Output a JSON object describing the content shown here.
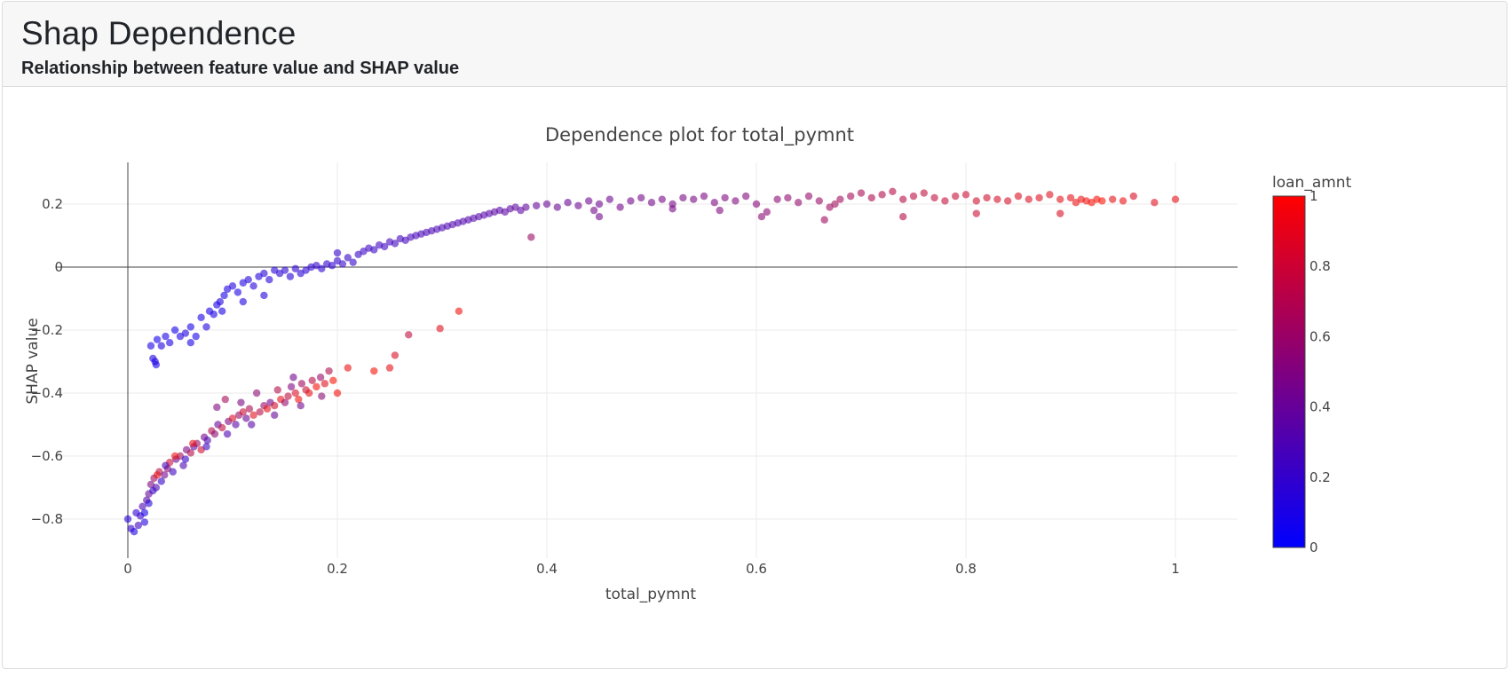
{
  "header": {
    "title": "Shap Dependence",
    "subtitle": "Relationship between feature value and SHAP value"
  },
  "chart_data": {
    "type": "scatter",
    "title": "Dependence plot for total_pymnt",
    "xlabel": "total_pymnt",
    "ylabel": "SHAP value",
    "xlim": [
      -0.07,
      1.06
    ],
    "ylim": [
      -0.91,
      0.335
    ],
    "x_ticks": [
      0,
      0.2,
      0.4,
      0.6,
      0.8,
      1
    ],
    "x_tick_labels": [
      "0",
      "0.2",
      "0.4",
      "0.6",
      "0.8",
      "1"
    ],
    "y_ticks": [
      0.2,
      0,
      -0.2,
      -0.4,
      -0.6,
      -0.8
    ],
    "y_tick_labels": [
      "0.2",
      "0",
      "−0.2",
      "−0.4",
      "−0.6",
      "−0.8"
    ],
    "grid": true,
    "colorbar": {
      "title": "loan_amnt",
      "range": [
        0,
        1
      ],
      "ticks": [
        0,
        0.2,
        0.4,
        0.6,
        0.8,
        1
      ],
      "tick_labels": [
        "0",
        "0.2",
        "0.4",
        "0.6",
        "0.8",
        "1"
      ],
      "color_low": "#0000ff",
      "color_high": "#ff0000"
    },
    "marker_opacity": 0.6,
    "points": [
      {
        "x": 0.0,
        "y": -0.8,
        "c": 0.15
      },
      {
        "x": 0.003,
        "y": -0.83,
        "c": 0.2
      },
      {
        "x": 0.006,
        "y": -0.84,
        "c": 0.12
      },
      {
        "x": 0.008,
        "y": -0.78,
        "c": 0.18
      },
      {
        "x": 0.01,
        "y": -0.82,
        "c": 0.25
      },
      {
        "x": 0.012,
        "y": -0.79,
        "c": 0.2
      },
      {
        "x": 0.014,
        "y": -0.76,
        "c": 0.3
      },
      {
        "x": 0.016,
        "y": -0.81,
        "c": 0.14
      },
      {
        "x": 0.018,
        "y": -0.74,
        "c": 0.35
      },
      {
        "x": 0.02,
        "y": -0.72,
        "c": 0.4
      },
      {
        "x": 0.022,
        "y": -0.69,
        "c": 0.5
      },
      {
        "x": 0.025,
        "y": -0.67,
        "c": 0.62
      },
      {
        "x": 0.027,
        "y": -0.7,
        "c": 0.3
      },
      {
        "x": 0.03,
        "y": -0.65,
        "c": 0.72
      },
      {
        "x": 0.032,
        "y": -0.68,
        "c": 0.2
      },
      {
        "x": 0.035,
        "y": -0.66,
        "c": 0.45
      },
      {
        "x": 0.038,
        "y": -0.64,
        "c": 0.55
      },
      {
        "x": 0.04,
        "y": -0.62,
        "c": 0.8
      },
      {
        "x": 0.043,
        "y": -0.65,
        "c": 0.25
      },
      {
        "x": 0.046,
        "y": -0.61,
        "c": 0.4
      },
      {
        "x": 0.05,
        "y": -0.6,
        "c": 0.65
      },
      {
        "x": 0.053,
        "y": -0.63,
        "c": 0.3
      },
      {
        "x": 0.056,
        "y": -0.58,
        "c": 0.5
      },
      {
        "x": 0.06,
        "y": -0.59,
        "c": 0.7
      },
      {
        "x": 0.063,
        "y": -0.57,
        "c": 0.35
      },
      {
        "x": 0.066,
        "y": -0.56,
        "c": 0.6
      },
      {
        "x": 0.07,
        "y": -0.58,
        "c": 0.82
      },
      {
        "x": 0.073,
        "y": -0.54,
        "c": 0.45
      },
      {
        "x": 0.076,
        "y": -0.55,
        "c": 0.3
      },
      {
        "x": 0.08,
        "y": -0.52,
        "c": 0.7
      },
      {
        "x": 0.083,
        "y": -0.53,
        "c": 0.55
      },
      {
        "x": 0.086,
        "y": -0.5,
        "c": 0.4
      },
      {
        "x": 0.09,
        "y": -0.51,
        "c": 0.75
      },
      {
        "x": 0.093,
        "y": -0.42,
        "c": 0.65
      },
      {
        "x": 0.096,
        "y": -0.49,
        "c": 0.5
      },
      {
        "x": 0.1,
        "y": -0.48,
        "c": 0.85
      },
      {
        "x": 0.103,
        "y": -0.5,
        "c": 0.35
      },
      {
        "x": 0.106,
        "y": -0.47,
        "c": 0.6
      },
      {
        "x": 0.11,
        "y": -0.46,
        "c": 0.78
      },
      {
        "x": 0.113,
        "y": -0.48,
        "c": 0.42
      },
      {
        "x": 0.116,
        "y": -0.45,
        "c": 0.68
      },
      {
        "x": 0.12,
        "y": -0.47,
        "c": 0.88
      },
      {
        "x": 0.123,
        "y": -0.4,
        "c": 0.55
      },
      {
        "x": 0.126,
        "y": -0.46,
        "c": 0.72
      },
      {
        "x": 0.13,
        "y": -0.44,
        "c": 0.6
      },
      {
        "x": 0.133,
        "y": -0.45,
        "c": 0.9
      },
      {
        "x": 0.136,
        "y": -0.43,
        "c": 0.45
      },
      {
        "x": 0.14,
        "y": -0.44,
        "c": 0.82
      },
      {
        "x": 0.143,
        "y": -0.39,
        "c": 0.7
      },
      {
        "x": 0.146,
        "y": -0.42,
        "c": 0.92
      },
      {
        "x": 0.15,
        "y": -0.43,
        "c": 0.58
      },
      {
        "x": 0.153,
        "y": -0.41,
        "c": 0.76
      },
      {
        "x": 0.156,
        "y": -0.38,
        "c": 0.5
      },
      {
        "x": 0.16,
        "y": -0.4,
        "c": 0.86
      },
      {
        "x": 0.163,
        "y": -0.42,
        "c": 0.95
      },
      {
        "x": 0.166,
        "y": -0.37,
        "c": 0.62
      },
      {
        "x": 0.17,
        "y": -0.39,
        "c": 0.8
      },
      {
        "x": 0.173,
        "y": -0.4,
        "c": 0.9
      },
      {
        "x": 0.176,
        "y": -0.36,
        "c": 0.72
      },
      {
        "x": 0.18,
        "y": -0.38,
        "c": 0.96
      },
      {
        "x": 0.184,
        "y": -0.35,
        "c": 0.6
      },
      {
        "x": 0.188,
        "y": -0.37,
        "c": 0.88
      },
      {
        "x": 0.192,
        "y": -0.33,
        "c": 0.7
      },
      {
        "x": 0.196,
        "y": -0.36,
        "c": 0.98
      },
      {
        "x": 0.2,
        "y": -0.4,
        "c": 0.95
      },
      {
        "x": 0.21,
        "y": -0.32,
        "c": 0.92
      },
      {
        "x": 0.235,
        "y": -0.33,
        "c": 0.97
      },
      {
        "x": 0.25,
        "y": -0.32,
        "c": 0.9
      },
      {
        "x": 0.255,
        "y": -0.28,
        "c": 0.85
      },
      {
        "x": 0.268,
        "y": -0.215,
        "c": 0.75
      },
      {
        "x": 0.298,
        "y": -0.195,
        "c": 0.88
      },
      {
        "x": 0.316,
        "y": -0.14,
        "c": 0.95
      },
      {
        "x": 0.085,
        "y": -0.445,
        "c": 0.5
      },
      {
        "x": 0.108,
        "y": -0.43,
        "c": 0.48
      },
      {
        "x": 0.158,
        "y": -0.35,
        "c": 0.45
      },
      {
        "x": 0.028,
        "y": -0.66,
        "c": 0.9
      },
      {
        "x": 0.045,
        "y": -0.6,
        "c": 0.95
      },
      {
        "x": 0.062,
        "y": -0.56,
        "c": 0.92
      },
      {
        "x": 0.016,
        "y": -0.78,
        "c": 0.1
      },
      {
        "x": 0.02,
        "y": -0.75,
        "c": 0.15
      },
      {
        "x": 0.024,
        "y": -0.71,
        "c": 0.22
      },
      {
        "x": 0.036,
        "y": -0.63,
        "c": 0.28
      },
      {
        "x": 0.055,
        "y": -0.61,
        "c": 0.2
      },
      {
        "x": 0.075,
        "y": -0.57,
        "c": 0.25
      },
      {
        "x": 0.095,
        "y": -0.53,
        "c": 0.3
      },
      {
        "x": 0.118,
        "y": -0.5,
        "c": 0.35
      },
      {
        "x": 0.14,
        "y": -0.47,
        "c": 0.4
      },
      {
        "x": 0.165,
        "y": -0.44,
        "c": 0.45
      },
      {
        "x": 0.185,
        "y": -0.41,
        "c": 0.55
      },
      {
        "x": 0.022,
        "y": -0.25,
        "c": 0.1
      },
      {
        "x": 0.024,
        "y": -0.29,
        "c": 0.12
      },
      {
        "x": 0.026,
        "y": -0.3,
        "c": 0.1
      },
      {
        "x": 0.028,
        "y": -0.23,
        "c": 0.08
      },
      {
        "x": 0.032,
        "y": -0.25,
        "c": 0.12
      },
      {
        "x": 0.036,
        "y": -0.22,
        "c": 0.1
      },
      {
        "x": 0.04,
        "y": -0.24,
        "c": 0.1
      },
      {
        "x": 0.045,
        "y": -0.2,
        "c": 0.08
      },
      {
        "x": 0.05,
        "y": -0.22,
        "c": 0.1
      },
      {
        "x": 0.055,
        "y": -0.21,
        "c": 0.12
      },
      {
        "x": 0.06,
        "y": -0.19,
        "c": 0.1
      },
      {
        "x": 0.065,
        "y": -0.22,
        "c": 0.09
      },
      {
        "x": 0.07,
        "y": -0.16,
        "c": 0.1
      },
      {
        "x": 0.075,
        "y": -0.19,
        "c": 0.12
      },
      {
        "x": 0.078,
        "y": -0.14,
        "c": 0.1
      },
      {
        "x": 0.082,
        "y": -0.15,
        "c": 0.11
      },
      {
        "x": 0.085,
        "y": -0.12,
        "c": 0.09
      },
      {
        "x": 0.088,
        "y": -0.11,
        "c": 0.12
      },
      {
        "x": 0.092,
        "y": -0.09,
        "c": 0.1
      },
      {
        "x": 0.095,
        "y": -0.07,
        "c": 0.11
      },
      {
        "x": 0.1,
        "y": -0.06,
        "c": 0.12
      },
      {
        "x": 0.105,
        "y": -0.08,
        "c": 0.1
      },
      {
        "x": 0.11,
        "y": -0.05,
        "c": 0.13
      },
      {
        "x": 0.115,
        "y": -0.04,
        "c": 0.12
      },
      {
        "x": 0.12,
        "y": -0.06,
        "c": 0.14
      },
      {
        "x": 0.125,
        "y": -0.03,
        "c": 0.13
      },
      {
        "x": 0.13,
        "y": -0.02,
        "c": 0.15
      },
      {
        "x": 0.135,
        "y": -0.04,
        "c": 0.14
      },
      {
        "x": 0.14,
        "y": -0.01,
        "c": 0.15
      },
      {
        "x": 0.145,
        "y": -0.02,
        "c": 0.16
      },
      {
        "x": 0.15,
        "y": -0.01,
        "c": 0.17
      },
      {
        "x": 0.155,
        "y": -0.03,
        "c": 0.15
      },
      {
        "x": 0.16,
        "y": -0.005,
        "c": 0.18
      },
      {
        "x": 0.165,
        "y": -0.02,
        "c": 0.16
      },
      {
        "x": 0.17,
        "y": -0.01,
        "c": 0.17
      },
      {
        "x": 0.175,
        "y": 0.0,
        "c": 0.18
      },
      {
        "x": 0.18,
        "y": 0.005,
        "c": 0.19
      },
      {
        "x": 0.185,
        "y": -0.005,
        "c": 0.17
      },
      {
        "x": 0.19,
        "y": 0.01,
        "c": 0.2
      },
      {
        "x": 0.195,
        "y": 0.005,
        "c": 0.18
      },
      {
        "x": 0.2,
        "y": 0.02,
        "c": 0.2
      },
      {
        "x": 0.205,
        "y": 0.01,
        "c": 0.21
      },
      {
        "x": 0.21,
        "y": 0.03,
        "c": 0.22
      },
      {
        "x": 0.215,
        "y": 0.015,
        "c": 0.2
      },
      {
        "x": 0.2,
        "y": 0.045,
        "c": 0.2
      },
      {
        "x": 0.09,
        "y": -0.14,
        "c": 0.1
      },
      {
        "x": 0.11,
        "y": -0.11,
        "c": 0.11
      },
      {
        "x": 0.13,
        "y": -0.09,
        "c": 0.12
      },
      {
        "x": 0.027,
        "y": -0.31,
        "c": 0.1
      },
      {
        "x": 0.06,
        "y": -0.24,
        "c": 0.1
      },
      {
        "x": 0.22,
        "y": 0.04,
        "c": 0.22
      },
      {
        "x": 0.225,
        "y": 0.05,
        "c": 0.23
      },
      {
        "x": 0.23,
        "y": 0.06,
        "c": 0.24
      },
      {
        "x": 0.235,
        "y": 0.055,
        "c": 0.23
      },
      {
        "x": 0.24,
        "y": 0.07,
        "c": 0.25
      },
      {
        "x": 0.245,
        "y": 0.065,
        "c": 0.24
      },
      {
        "x": 0.25,
        "y": 0.08,
        "c": 0.26
      },
      {
        "x": 0.255,
        "y": 0.075,
        "c": 0.25
      },
      {
        "x": 0.26,
        "y": 0.09,
        "c": 0.27
      },
      {
        "x": 0.265,
        "y": 0.085,
        "c": 0.26
      },
      {
        "x": 0.27,
        "y": 0.095,
        "c": 0.28
      },
      {
        "x": 0.275,
        "y": 0.1,
        "c": 0.27
      },
      {
        "x": 0.28,
        "y": 0.105,
        "c": 0.29
      },
      {
        "x": 0.285,
        "y": 0.11,
        "c": 0.28
      },
      {
        "x": 0.29,
        "y": 0.115,
        "c": 0.3
      },
      {
        "x": 0.295,
        "y": 0.12,
        "c": 0.29
      },
      {
        "x": 0.3,
        "y": 0.125,
        "c": 0.31
      },
      {
        "x": 0.305,
        "y": 0.13,
        "c": 0.3
      },
      {
        "x": 0.31,
        "y": 0.135,
        "c": 0.32
      },
      {
        "x": 0.315,
        "y": 0.14,
        "c": 0.31
      },
      {
        "x": 0.32,
        "y": 0.145,
        "c": 0.33
      },
      {
        "x": 0.325,
        "y": 0.15,
        "c": 0.32
      },
      {
        "x": 0.33,
        "y": 0.155,
        "c": 0.34
      },
      {
        "x": 0.335,
        "y": 0.16,
        "c": 0.33
      },
      {
        "x": 0.34,
        "y": 0.165,
        "c": 0.35
      },
      {
        "x": 0.345,
        "y": 0.17,
        "c": 0.34
      },
      {
        "x": 0.35,
        "y": 0.175,
        "c": 0.36
      },
      {
        "x": 0.355,
        "y": 0.18,
        "c": 0.35
      },
      {
        "x": 0.36,
        "y": 0.175,
        "c": 0.37
      },
      {
        "x": 0.365,
        "y": 0.185,
        "c": 0.36
      },
      {
        "x": 0.37,
        "y": 0.19,
        "c": 0.38
      },
      {
        "x": 0.375,
        "y": 0.18,
        "c": 0.37
      },
      {
        "x": 0.38,
        "y": 0.19,
        "c": 0.39
      },
      {
        "x": 0.385,
        "y": 0.095,
        "c": 0.6
      },
      {
        "x": 0.39,
        "y": 0.195,
        "c": 0.4
      },
      {
        "x": 0.4,
        "y": 0.2,
        "c": 0.41
      },
      {
        "x": 0.41,
        "y": 0.19,
        "c": 0.42
      },
      {
        "x": 0.42,
        "y": 0.205,
        "c": 0.42
      },
      {
        "x": 0.43,
        "y": 0.195,
        "c": 0.43
      },
      {
        "x": 0.44,
        "y": 0.21,
        "c": 0.43
      },
      {
        "x": 0.45,
        "y": 0.2,
        "c": 0.44
      },
      {
        "x": 0.46,
        "y": 0.215,
        "c": 0.44
      },
      {
        "x": 0.47,
        "y": 0.19,
        "c": 0.45
      },
      {
        "x": 0.48,
        "y": 0.21,
        "c": 0.45
      },
      {
        "x": 0.49,
        "y": 0.22,
        "c": 0.46
      },
      {
        "x": 0.5,
        "y": 0.205,
        "c": 0.46
      },
      {
        "x": 0.51,
        "y": 0.215,
        "c": 0.47
      },
      {
        "x": 0.52,
        "y": 0.2,
        "c": 0.47
      },
      {
        "x": 0.53,
        "y": 0.22,
        "c": 0.48
      },
      {
        "x": 0.54,
        "y": 0.215,
        "c": 0.48
      },
      {
        "x": 0.55,
        "y": 0.225,
        "c": 0.49
      },
      {
        "x": 0.56,
        "y": 0.205,
        "c": 0.49
      },
      {
        "x": 0.57,
        "y": 0.22,
        "c": 0.5
      },
      {
        "x": 0.58,
        "y": 0.21,
        "c": 0.5
      },
      {
        "x": 0.59,
        "y": 0.225,
        "c": 0.51
      },
      {
        "x": 0.6,
        "y": 0.2,
        "c": 0.52
      },
      {
        "x": 0.445,
        "y": 0.18,
        "c": 0.46
      },
      {
        "x": 0.52,
        "y": 0.185,
        "c": 0.48
      },
      {
        "x": 0.565,
        "y": 0.18,
        "c": 0.5
      },
      {
        "x": 0.61,
        "y": 0.175,
        "c": 0.55
      },
      {
        "x": 0.45,
        "y": 0.16,
        "c": 0.45
      },
      {
        "x": 0.62,
        "y": 0.215,
        "c": 0.55
      },
      {
        "x": 0.63,
        "y": 0.22,
        "c": 0.56
      },
      {
        "x": 0.64,
        "y": 0.205,
        "c": 0.57
      },
      {
        "x": 0.65,
        "y": 0.225,
        "c": 0.58
      },
      {
        "x": 0.66,
        "y": 0.21,
        "c": 0.6
      },
      {
        "x": 0.665,
        "y": 0.15,
        "c": 0.62
      },
      {
        "x": 0.67,
        "y": 0.19,
        "c": 0.62
      },
      {
        "x": 0.675,
        "y": 0.2,
        "c": 0.63
      },
      {
        "x": 0.68,
        "y": 0.215,
        "c": 0.64
      },
      {
        "x": 0.69,
        "y": 0.225,
        "c": 0.65
      },
      {
        "x": 0.7,
        "y": 0.235,
        "c": 0.66
      },
      {
        "x": 0.71,
        "y": 0.22,
        "c": 0.68
      },
      {
        "x": 0.72,
        "y": 0.23,
        "c": 0.7
      },
      {
        "x": 0.73,
        "y": 0.24,
        "c": 0.71
      },
      {
        "x": 0.74,
        "y": 0.215,
        "c": 0.72
      },
      {
        "x": 0.75,
        "y": 0.225,
        "c": 0.74
      },
      {
        "x": 0.76,
        "y": 0.235,
        "c": 0.75
      },
      {
        "x": 0.77,
        "y": 0.22,
        "c": 0.76
      },
      {
        "x": 0.78,
        "y": 0.21,
        "c": 0.77
      },
      {
        "x": 0.79,
        "y": 0.225,
        "c": 0.78
      },
      {
        "x": 0.8,
        "y": 0.23,
        "c": 0.8
      },
      {
        "x": 0.81,
        "y": 0.21,
        "c": 0.81
      },
      {
        "x": 0.82,
        "y": 0.22,
        "c": 0.82
      },
      {
        "x": 0.83,
        "y": 0.215,
        "c": 0.83
      },
      {
        "x": 0.84,
        "y": 0.21,
        "c": 0.84
      },
      {
        "x": 0.85,
        "y": 0.225,
        "c": 0.85
      },
      {
        "x": 0.86,
        "y": 0.215,
        "c": 0.86
      },
      {
        "x": 0.87,
        "y": 0.22,
        "c": 0.87
      },
      {
        "x": 0.88,
        "y": 0.23,
        "c": 0.88
      },
      {
        "x": 0.89,
        "y": 0.215,
        "c": 0.89
      },
      {
        "x": 0.9,
        "y": 0.22,
        "c": 0.9
      },
      {
        "x": 0.905,
        "y": 0.205,
        "c": 0.92
      },
      {
        "x": 0.91,
        "y": 0.215,
        "c": 0.93
      },
      {
        "x": 0.915,
        "y": 0.21,
        "c": 0.95
      },
      {
        "x": 0.92,
        "y": 0.205,
        "c": 0.96
      },
      {
        "x": 0.925,
        "y": 0.215,
        "c": 0.97
      },
      {
        "x": 0.93,
        "y": 0.21,
        "c": 0.98
      },
      {
        "x": 0.94,
        "y": 0.215,
        "c": 0.9
      },
      {
        "x": 0.95,
        "y": 0.21,
        "c": 0.92
      },
      {
        "x": 0.96,
        "y": 0.225,
        "c": 0.85
      },
      {
        "x": 0.98,
        "y": 0.205,
        "c": 0.88
      },
      {
        "x": 1.0,
        "y": 0.215,
        "c": 0.9
      },
      {
        "x": 0.74,
        "y": 0.16,
        "c": 0.72
      },
      {
        "x": 0.81,
        "y": 0.17,
        "c": 0.8
      },
      {
        "x": 0.89,
        "y": 0.17,
        "c": 0.85
      },
      {
        "x": 0.605,
        "y": 0.16,
        "c": 0.55
      }
    ]
  }
}
